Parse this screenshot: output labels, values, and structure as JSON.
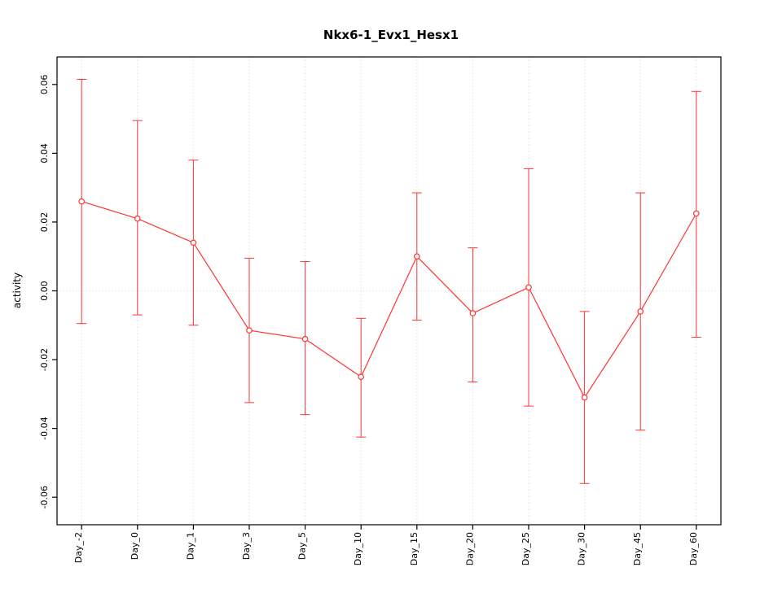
{
  "chart_data": {
    "type": "line",
    "title": "Nkx6-1_Evx1_Hesx1",
    "xlabel": "",
    "ylabel": "activity",
    "categories": [
      "Day_-2",
      "Day_0",
      "Day_1",
      "Day_3",
      "Day_5",
      "Day_10",
      "Day_15",
      "Day_20",
      "Day_25",
      "Day_30",
      "Day_45",
      "Day_60"
    ],
    "series": [
      {
        "name": "activity",
        "values": [
          0.026,
          0.021,
          0.014,
          -0.0115,
          -0.014,
          -0.025,
          0.01,
          -0.0065,
          0.001,
          -0.031,
          -0.006,
          0.0225
        ],
        "lower": [
          -0.0095,
          -0.007,
          -0.01,
          -0.0325,
          -0.036,
          -0.0425,
          -0.0085,
          -0.0265,
          -0.0335,
          -0.056,
          -0.0405,
          -0.0135
        ],
        "upper": [
          0.0615,
          0.0495,
          0.038,
          0.0095,
          0.0085,
          -0.008,
          0.0285,
          0.0125,
          0.0355,
          -0.006,
          0.0285,
          0.058
        ]
      }
    ],
    "ylim": [
      -0.068,
      0.068
    ],
    "yticks": [
      -0.06,
      -0.04,
      -0.02,
      0.0,
      0.02,
      0.04,
      0.06
    ],
    "grid": true,
    "legend": "none",
    "colors": {
      "series": "#ff3333",
      "grid": "#d6d6d6",
      "axis": "#000000",
      "background": "#ffffff"
    }
  }
}
